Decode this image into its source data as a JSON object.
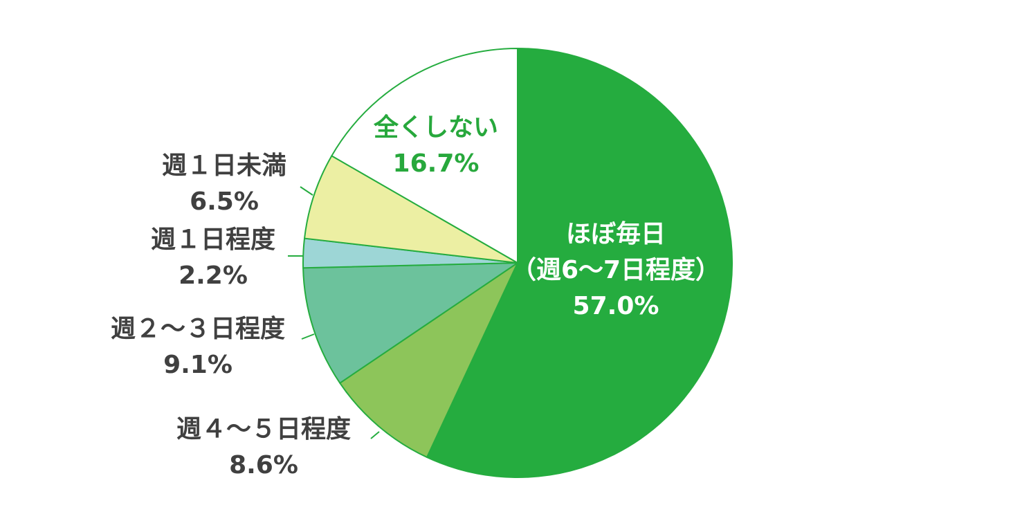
{
  "chart_data": {
    "type": "pie",
    "start_angle_deg": 0,
    "direction": "clockwise",
    "slices": [
      {
        "label": [
          "ほぼ毎日",
          "（週6〜7日程度）"
        ],
        "value": 57.0,
        "value_label": "57.0%",
        "color": "#25ac3f",
        "label_color": "#ffffff"
      },
      {
        "label": [
          "週４〜５日程度"
        ],
        "value": 8.6,
        "value_label": "8.6%",
        "color": "#8dc55a",
        "label_color": "#404040"
      },
      {
        "label": [
          "週２〜３日程度"
        ],
        "value": 9.1,
        "value_label": "9.1%",
        "color": "#6cc29c",
        "label_color": "#404040"
      },
      {
        "label": [
          "週１日程度"
        ],
        "value": 2.2,
        "value_label": "2.2%",
        "color": "#9dd6d6",
        "label_color": "#404040"
      },
      {
        "label": [
          "週１日未満"
        ],
        "value": 6.5,
        "value_label": "6.5%",
        "color": "#ecefa3",
        "label_color": "#404040"
      },
      {
        "label": [
          "全くしない"
        ],
        "value": 16.7,
        "value_label": "16.7%",
        "color": "#ffffff",
        "label_color": "#27a83c"
      }
    ],
    "outline_color": "#25ac3f"
  }
}
